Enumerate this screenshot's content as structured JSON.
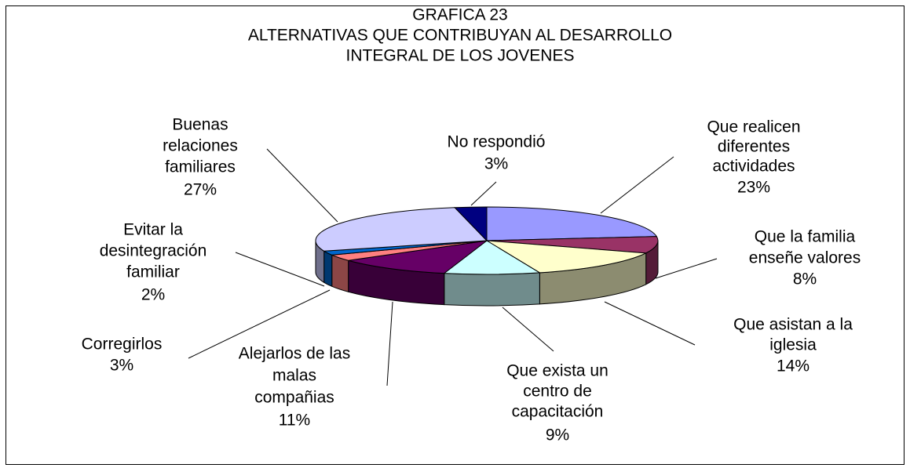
{
  "chart_data": {
    "type": "pie3d",
    "title": [
      "GRAFICA 23",
      "ALTERNATIVAS QUE CONTRIBUYAN AL DESARROLLO",
      "INTEGRAL DE LOS JOVENES"
    ],
    "categories": [
      [
        "Que realicen",
        "diferentes",
        "actividades"
      ],
      [
        "Que la familia",
        "enseñe valores"
      ],
      [
        "Que asistan a la",
        "iglesia"
      ],
      [
        "Que exista un",
        "centro de",
        "capacitación"
      ],
      [
        "Alejarlos de las",
        "malas",
        "compañias"
      ],
      [
        "Corregirlos"
      ],
      [
        "Evitar la",
        "desintegración",
        "familiar"
      ],
      [
        "Buenas",
        "relaciones",
        "familiares"
      ],
      [
        "No respondió"
      ]
    ],
    "values": [
      23,
      8,
      14,
      9,
      11,
      3,
      2,
      27,
      3
    ],
    "value_labels": [
      "23%",
      "8%",
      "14%",
      "9%",
      "11%",
      "3%",
      "2%",
      "27%",
      "3%"
    ],
    "colors": [
      "#9999ff",
      "#993366",
      "#ffffcc",
      "#ccffff",
      "#660066",
      "#ff8080",
      "#0066cc",
      "#ccccff",
      "#000080"
    ]
  }
}
